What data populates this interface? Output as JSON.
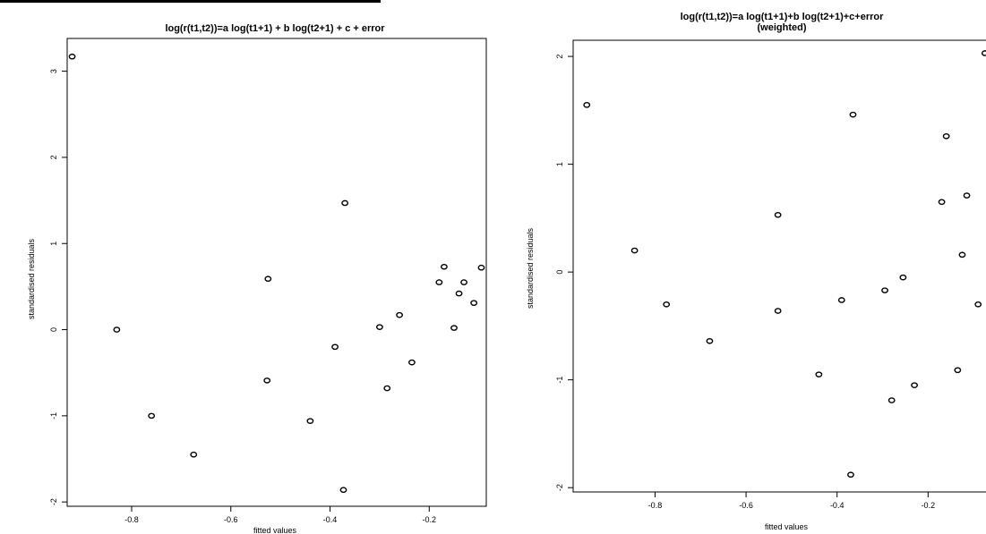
{
  "chart_data": [
    {
      "type": "scatter",
      "title": "log(r(t1,t2))=a log(t1+1) + b log(t2+1) + c + error",
      "subtitle": "",
      "xlabel": "fitted values",
      "ylabel": "standardised residuals",
      "xlim": [
        -0.93,
        -0.085
      ],
      "ylim": [
        -2.05,
        3.38
      ],
      "xticks": [
        -0.8,
        -0.6,
        -0.4,
        -0.2
      ],
      "xtick_labels": [
        "-0.8",
        "-0.6",
        "-0.4",
        "-0.2"
      ],
      "yticks": [
        -2,
        -1,
        0,
        1,
        2,
        3
      ],
      "ytick_labels": [
        "-2",
        "-1",
        "0",
        "1",
        "2",
        "3"
      ],
      "grid": false,
      "points": [
        {
          "x": -0.92,
          "y": 3.17
        },
        {
          "x": -0.83,
          "y": 0.0
        },
        {
          "x": -0.76,
          "y": -1.0
        },
        {
          "x": -0.675,
          "y": -1.45
        },
        {
          "x": -0.525,
          "y": 0.59
        },
        {
          "x": -0.527,
          "y": -0.59
        },
        {
          "x": -0.44,
          "y": -1.06
        },
        {
          "x": -0.39,
          "y": -0.2
        },
        {
          "x": -0.37,
          "y": 1.47
        },
        {
          "x": -0.373,
          "y": -1.86
        },
        {
          "x": -0.3,
          "y": 0.03
        },
        {
          "x": -0.285,
          "y": -0.68
        },
        {
          "x": -0.26,
          "y": 0.17
        },
        {
          "x": -0.235,
          "y": -0.38
        },
        {
          "x": -0.18,
          "y": 0.55
        },
        {
          "x": -0.17,
          "y": 0.73
        },
        {
          "x": -0.15,
          "y": 0.02
        },
        {
          "x": -0.14,
          "y": 0.42
        },
        {
          "x": -0.13,
          "y": 0.55
        },
        {
          "x": -0.11,
          "y": 0.31
        },
        {
          "x": -0.095,
          "y": 0.72
        }
      ]
    },
    {
      "type": "scatter",
      "title": "log(r(t1,t2))=a log(t1+1)+b log(t2+1)+c+error",
      "subtitle": "(weighted)",
      "xlabel": "fitted values",
      "ylabel": "standardised residuals",
      "xlim": [
        -0.98,
        -0.055
      ],
      "ylim": [
        -2.04,
        2.15
      ],
      "xticks": [
        -0.8,
        -0.6,
        -0.4,
        -0.2
      ],
      "xtick_labels": [
        "-0.8",
        "-0.6",
        "-0.4",
        "-0.2"
      ],
      "yticks": [
        -2,
        -1,
        0,
        1,
        2
      ],
      "ytick_labels": [
        "-2",
        "-1",
        "0",
        "1",
        "2"
      ],
      "grid": false,
      "points": [
        {
          "x": -0.95,
          "y": 1.55
        },
        {
          "x": -0.845,
          "y": 0.2
        },
        {
          "x": -0.775,
          "y": -0.3
        },
        {
          "x": -0.68,
          "y": -0.64
        },
        {
          "x": -0.53,
          "y": 0.53
        },
        {
          "x": -0.53,
          "y": -0.36
        },
        {
          "x": -0.44,
          "y": -0.95
        },
        {
          "x": -0.39,
          "y": -0.26
        },
        {
          "x": -0.365,
          "y": 1.46
        },
        {
          "x": -0.37,
          "y": -1.88
        },
        {
          "x": -0.295,
          "y": -0.17
        },
        {
          "x": -0.28,
          "y": -1.19
        },
        {
          "x": -0.255,
          "y": -0.05
        },
        {
          "x": -0.23,
          "y": -1.05
        },
        {
          "x": -0.17,
          "y": 0.65
        },
        {
          "x": -0.16,
          "y": 1.26
        },
        {
          "x": -0.135,
          "y": -0.91
        },
        {
          "x": -0.125,
          "y": 0.16
        },
        {
          "x": -0.115,
          "y": 0.71
        },
        {
          "x": -0.09,
          "y": -0.3
        },
        {
          "x": -0.075,
          "y": 2.03
        }
      ]
    }
  ]
}
